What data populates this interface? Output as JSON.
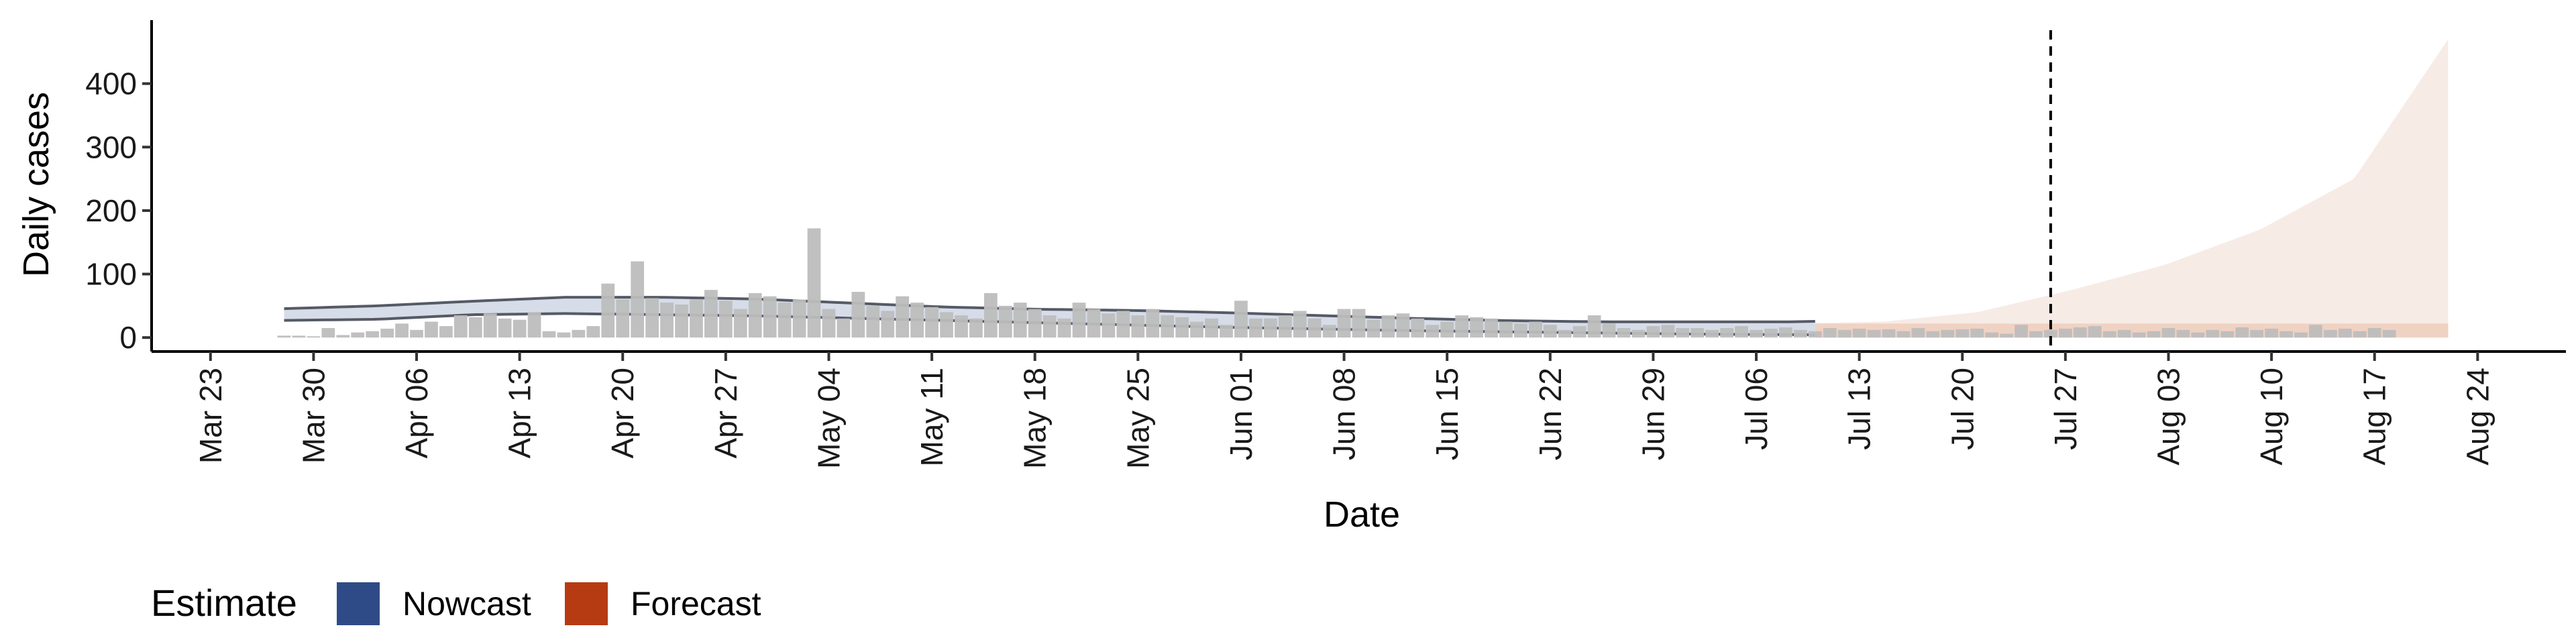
{
  "chart_data": {
    "type": "bar",
    "xlabel": "Date",
    "ylabel": "Daily cases",
    "x_ticks": [
      "Mar 23",
      "Mar 30",
      "Apr 06",
      "Apr 13",
      "Apr 20",
      "Apr 27",
      "May 04",
      "May 11",
      "May 18",
      "May 25",
      "Jun 01",
      "Jun 08",
      "Jun 15",
      "Jun 22",
      "Jun 29",
      "Jul 06",
      "Jul 13",
      "Jul 20",
      "Jul 27",
      "Aug 03",
      "Aug 10",
      "Aug 17",
      "Aug 24"
    ],
    "y_ticks": [
      0,
      100,
      200,
      300,
      400
    ],
    "xlim": [
      "2020-03-19",
      "2020-08-30"
    ],
    "ylim": [
      -22,
      500
    ],
    "grid": false,
    "observed_cases": {
      "start_date": "2020-03-28",
      "values": [
        3,
        3,
        2,
        15,
        4,
        8,
        10,
        14,
        22,
        12,
        25,
        18,
        35,
        32,
        38,
        30,
        28,
        40,
        10,
        8,
        12,
        18,
        85,
        60,
        120,
        62,
        55,
        52,
        60,
        75,
        58,
        45,
        70,
        65,
        55,
        60,
        172,
        45,
        30,
        72,
        50,
        42,
        65,
        55,
        48,
        40,
        35,
        30,
        70,
        50,
        55,
        45,
        35,
        30,
        55,
        45,
        38,
        42,
        35,
        45,
        35,
        32,
        25,
        30,
        20,
        58,
        30,
        30,
        35,
        42,
        30,
        20,
        45,
        45,
        28,
        35,
        38,
        30,
        20,
        25,
        35,
        32,
        30,
        25,
        22,
        25,
        20,
        12,
        18,
        35,
        22,
        15,
        12,
        18,
        20,
        15,
        15,
        12,
        15,
        18,
        12,
        14,
        16,
        12,
        10,
        15,
        12,
        14,
        12,
        13,
        10,
        15,
        10,
        12,
        13,
        14,
        8,
        6,
        20,
        10,
        12,
        14,
        16,
        18,
        10,
        12,
        8,
        10,
        15,
        12,
        8,
        12,
        10,
        16,
        12,
        14,
        10,
        8,
        20,
        12,
        14,
        10,
        15,
        12
      ]
    },
    "estimate_periods": [
      {
        "type": "nowcast",
        "start": "2020-03-28",
        "end": "2020-07-10"
      },
      {
        "type": "nowcast_partial",
        "start": "2020-07-10",
        "end": "2020-07-26"
      },
      {
        "type": "forecast",
        "start": "2020-07-26",
        "end": "2020-08-22"
      }
    ],
    "forecast_start_line": "2020-07-26",
    "estimates": {
      "date_start": "2020-03-28",
      "nowcast_median_start": 30,
      "nowcast_median_peak": 58,
      "forecast_median_end": 30,
      "outer_upper": [
        45,
        50,
        58,
        65,
        65,
        62,
        55,
        48,
        44,
        42,
        38,
        33,
        28,
        24,
        22,
        22,
        22,
        25,
        40,
        75,
        115,
        170,
        250,
        470
      ],
      "outer_lower": [
        30,
        32,
        40,
        42,
        40,
        38,
        34,
        30,
        26,
        22,
        18,
        15,
        12,
        10,
        8,
        6,
        5,
        4,
        3,
        2,
        2,
        2,
        2,
        2
      ]
    },
    "colors": {
      "bars": "#bdbdbd",
      "nowcast": "#2f4b87",
      "forecast": "#b63b12",
      "forecast_band": "#f7ebe5",
      "forecast_inner": "#f0d2c3",
      "nowcast_band": "#cfd6e4"
    },
    "legend": {
      "title": "Estimate",
      "items": [
        {
          "label": "Nowcast",
          "color": "#2f4b87"
        },
        {
          "label": "Forecast",
          "color": "#b63b12"
        }
      ],
      "position": "bottom-left"
    }
  }
}
